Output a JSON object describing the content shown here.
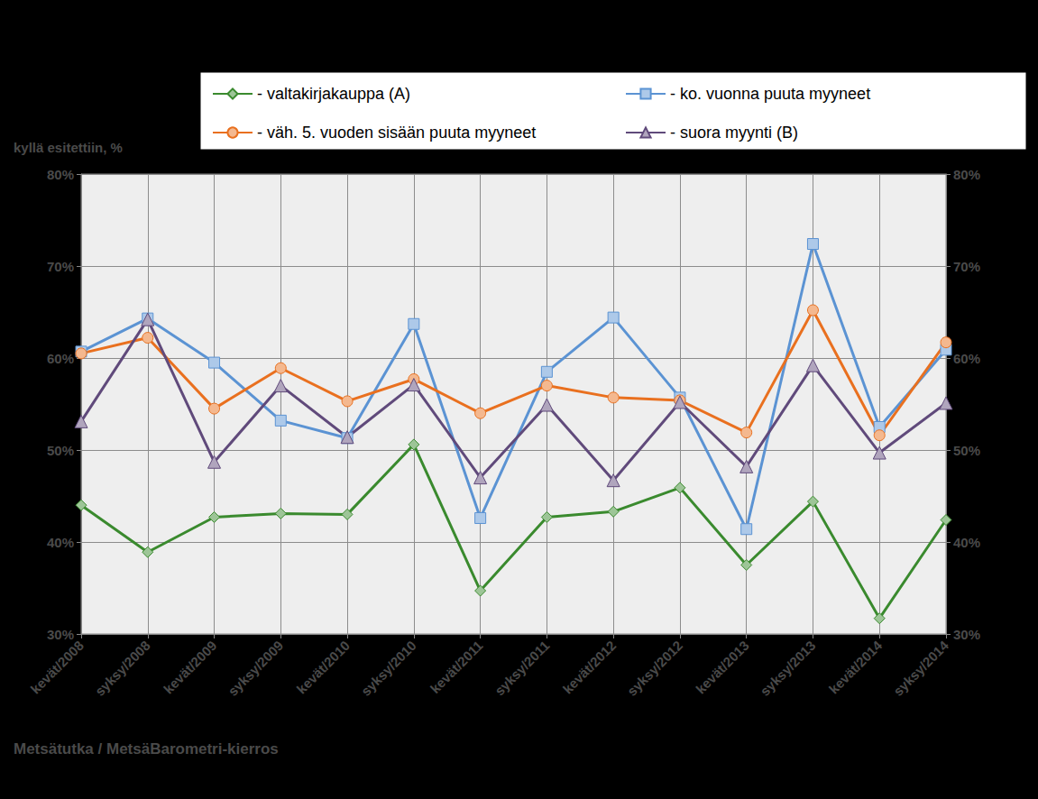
{
  "chart_data": {
    "type": "line",
    "y_label": "kyllä esitettiin, %",
    "caption": "Metsätutka / MetsäBarometri-kierros",
    "categories": [
      "kevät/2008",
      "syksy/2008",
      "kevät/2009",
      "syksy/2009",
      "kevät/2010",
      "syksy/2010",
      "kevät/2011",
      "syksy/2011",
      "kevät/2012",
      "syksy/2012",
      "kevät/2013",
      "syksy/2013",
      "kevät/2014",
      "syksy/2014"
    ],
    "series": [
      {
        "name": "- valtakirjakauppa (A)",
        "color": "#3a8a2e",
        "marker": "diamond",
        "values": [
          44.0,
          38.9,
          42.7,
          43.1,
          43.0,
          50.6,
          34.7,
          42.7,
          43.3,
          45.9,
          37.5,
          44.4,
          31.7,
          42.4
        ]
      },
      {
        "name": "- ko. vuonna puuta myyneet",
        "color": "#5b93d3",
        "marker": "square",
        "values": [
          60.7,
          64.3,
          59.5,
          53.2,
          51.3,
          63.7,
          42.6,
          58.5,
          64.4,
          55.7,
          41.4,
          72.4,
          52.5,
          60.9
        ]
      },
      {
        "name": "- väh. 5. vuoden sisään puuta myyneet",
        "color": "#e9701f",
        "marker": "circle",
        "values": [
          60.5,
          62.2,
          54.5,
          58.9,
          55.3,
          57.7,
          54.0,
          57.0,
          55.7,
          55.4,
          51.9,
          65.2,
          51.6,
          61.7
        ]
      },
      {
        "name": "- suora myynti (B)",
        "color": "#604a7b",
        "marker": "triangle",
        "values": [
          53.1,
          64.2,
          48.7,
          57.0,
          51.4,
          57.1,
          47.0,
          54.9,
          46.7,
          55.2,
          48.2,
          59.2,
          49.7,
          55.1
        ]
      }
    ],
    "ylim": [
      30,
      80
    ],
    "yticks": [
      {
        "value": 30,
        "label": "30%"
      },
      {
        "value": 40,
        "label": "40%"
      },
      {
        "value": 50,
        "label": "50%"
      },
      {
        "value": 60,
        "label": "60%"
      },
      {
        "value": 70,
        "label": "70%"
      },
      {
        "value": 80,
        "label": "80%"
      }
    ],
    "y2lim": [
      30,
      80
    ],
    "y2ticks": [
      {
        "value": 30,
        "label": "30%"
      },
      {
        "value": 40,
        "label": "40%"
      },
      {
        "value": 50,
        "label": "50%"
      },
      {
        "value": 60,
        "label": "60%"
      },
      {
        "value": 70,
        "label": "70%"
      },
      {
        "value": 80,
        "label": "80%"
      }
    ],
    "grid": true,
    "legend": "top"
  }
}
